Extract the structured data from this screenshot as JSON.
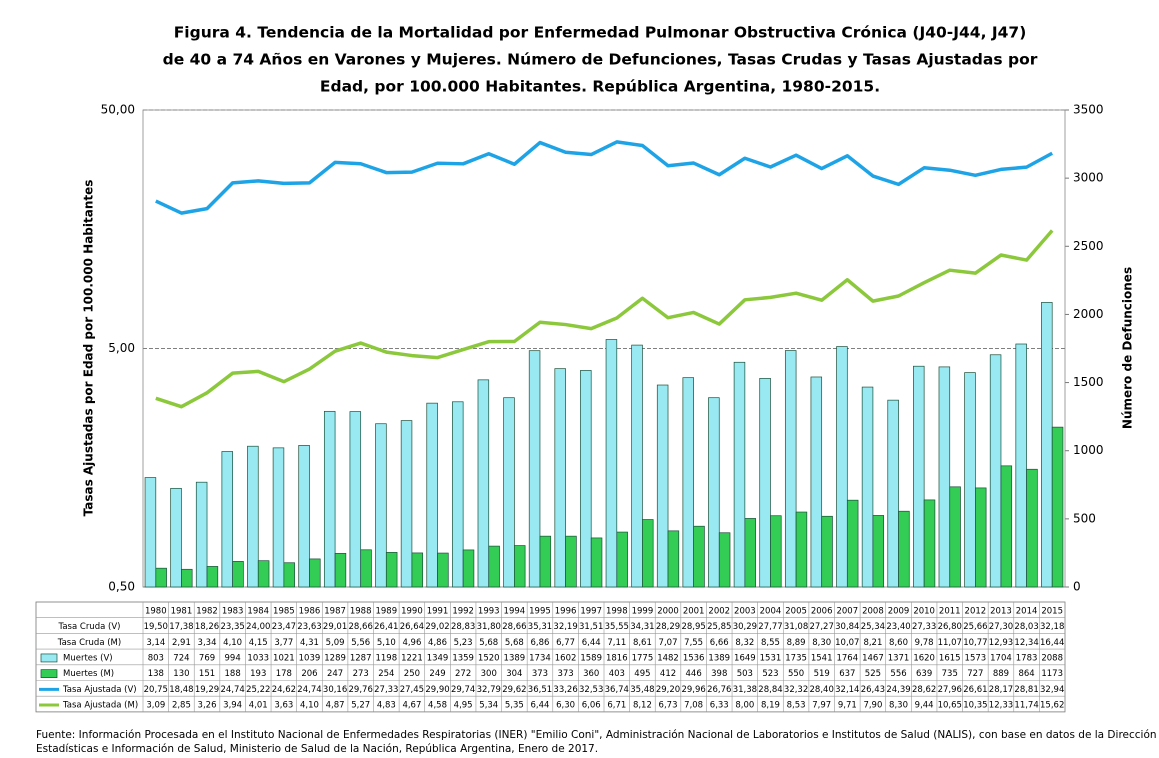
{
  "chart_data": {
    "type": "combo",
    "title": [
      "Figura 4. Tendencia de la Mortalidad por Enfermedad Pulmonar Obstructiva Crónica (J40-J44, J47)",
      "de 40 a 74  Años en Varones y Mujeres. Número de Defunciones, Tasas Crudas y Tasas Ajustadas por",
      "Edad, por 100.000 Habitantes. República Argentina, 1980-2015."
    ],
    "y_label": "Tasas Ajustadas por Edad por 100.000 Habitantes",
    "y2_label": "Número de Defunciones",
    "log_y": true,
    "ylim": [
      0.5,
      50
    ],
    "yticks": [
      {
        "value": 0.5,
        "label": "0,50"
      },
      {
        "value": 5,
        "label": "5,00"
      },
      {
        "value": 50,
        "label": "50,00"
      }
    ],
    "y2lim": [
      0,
      3500
    ],
    "y2ticks": [
      0,
      500,
      1000,
      1500,
      2000,
      2500,
      3000,
      3500
    ],
    "grid": true,
    "categories": [
      "1980",
      "1981",
      "1982",
      "1983",
      "1984",
      "1985",
      "1986",
      "1987",
      "1988",
      "1989",
      "1990",
      "1991",
      "1992",
      "1993",
      "1994",
      "1995",
      "1996",
      "1997",
      "1998",
      "1999",
      "2000",
      "2001",
      "2002",
      "2003",
      "2004",
      "2005",
      "2006",
      "2007",
      "2008",
      "2009",
      "2010",
      "2011",
      "2012",
      "2013",
      "2014",
      "2015"
    ],
    "series": [
      {
        "name": "Tasa Cruda (V)",
        "type": "table",
        "values": [
          19.5,
          17.38,
          18.26,
          23.35,
          24.0,
          23.47,
          23.63,
          29.01,
          28.66,
          26.41,
          26.64,
          29.02,
          28.83,
          31.8,
          28.66,
          35.31,
          32.19,
          31.51,
          35.55,
          34.31,
          28.29,
          28.95,
          25.85,
          30.29,
          27.77,
          31.08,
          27.27,
          30.84,
          25.34,
          23.4,
          27.33,
          26.8,
          25.66,
          27.3,
          28.03,
          32.18
        ],
        "value_labels": [
          "19,50",
          "17,38",
          "18,26",
          "23,35",
          "24,00",
          "23,47",
          "23,63",
          "29,01",
          "28,66",
          "26,41",
          "26,64",
          "29,02",
          "28,83",
          "31,80",
          "28,66",
          "35,31",
          "32,19",
          "31,51",
          "35,55",
          "34,31",
          "28,29",
          "28,95",
          "25,85",
          "30,29",
          "27,77",
          "31,08",
          "27,27",
          "30,84",
          "25,34",
          "23,40",
          "27,33",
          "26,80",
          "25,66",
          "27,30",
          "28,03",
          "32,18"
        ]
      },
      {
        "name": "Tasa Cruda (M)",
        "type": "table",
        "values": [
          3.14,
          2.91,
          3.34,
          4.1,
          4.15,
          3.77,
          4.31,
          5.09,
          5.56,
          5.1,
          4.96,
          4.86,
          5.23,
          5.68,
          5.68,
          6.86,
          6.77,
          6.44,
          7.11,
          8.61,
          7.07,
          7.55,
          6.66,
          8.32,
          8.55,
          8.89,
          8.3,
          10.07,
          8.21,
          8.6,
          9.78,
          11.07,
          10.77,
          12.93,
          12.34,
          16.44
        ],
        "value_labels": [
          "3,14",
          "2,91",
          "3,34",
          "4,10",
          "4,15",
          "3,77",
          "4,31",
          "5,09",
          "5,56",
          "5,10",
          "4,96",
          "4,86",
          "5,23",
          "5,68",
          "5,68",
          "6,86",
          "6,77",
          "6,44",
          "7,11",
          "8,61",
          "7,07",
          "7,55",
          "6,66",
          "8,32",
          "8,55",
          "8,89",
          "8,30",
          "10,07",
          "8,21",
          "8,60",
          "9,78",
          "11,07",
          "10,77",
          "12,93",
          "12,34",
          "16,44"
        ]
      },
      {
        "name": "Muertes (V)",
        "type": "bar",
        "axis": "y2",
        "color": "#99e9f2",
        "values": [
          803,
          724,
          769,
          994,
          1033,
          1021,
          1039,
          1289,
          1287,
          1198,
          1221,
          1349,
          1359,
          1520,
          1389,
          1734,
          1602,
          1589,
          1816,
          1775,
          1482,
          1536,
          1389,
          1649,
          1531,
          1735,
          1541,
          1764,
          1467,
          1371,
          1620,
          1615,
          1573,
          1704,
          1783,
          2088
        ]
      },
      {
        "name": "Muertes (M)",
        "type": "bar",
        "axis": "y2",
        "color": "#33cc55",
        "values": [
          138,
          130,
          151,
          188,
          193,
          178,
          206,
          247,
          273,
          254,
          250,
          249,
          272,
          300,
          304,
          373,
          373,
          360,
          403,
          495,
          412,
          446,
          398,
          503,
          523,
          550,
          519,
          637,
          525,
          556,
          639,
          735,
          727,
          889,
          864,
          1173
        ]
      },
      {
        "name": "Tasa Ajustada (V)",
        "type": "line",
        "color": "#1ea4e6",
        "values": [
          20.75,
          18.48,
          19.29,
          24.74,
          25.22,
          24.62,
          24.74,
          30.16,
          29.76,
          27.33,
          27.45,
          29.9,
          29.74,
          32.79,
          29.62,
          36.51,
          33.26,
          32.53,
          36.74,
          35.48,
          29.2,
          29.96,
          26.76,
          31.38,
          28.84,
          32.32,
          28.4,
          32.14,
          26.43,
          24.39,
          28.62,
          27.96,
          26.61,
          28.17,
          28.81,
          32.94
        ],
        "value_labels": [
          "20,75",
          "18,48",
          "19,29",
          "24,74",
          "25,22",
          "24,62",
          "24,74",
          "30,16",
          "29,76",
          "27,33",
          "27,45",
          "29,90",
          "29,74",
          "32,79",
          "29,62",
          "36,51",
          "33,26",
          "32,53",
          "36,74",
          "35,48",
          "29,20",
          "29,96",
          "26,76",
          "31,38",
          "28,84",
          "32,32",
          "28,40",
          "32,14",
          "26,43",
          "24,39",
          "28,62",
          "27,96",
          "26,61",
          "28,17",
          "28,81",
          "32,94"
        ]
      },
      {
        "name": "Tasa Ajustada (M)",
        "type": "line",
        "color": "#8cc83c",
        "values": [
          3.09,
          2.85,
          3.26,
          3.94,
          4.01,
          3.63,
          4.1,
          4.87,
          5.27,
          4.83,
          4.67,
          4.58,
          4.95,
          5.34,
          5.35,
          6.44,
          6.3,
          6.06,
          6.71,
          8.12,
          6.73,
          7.08,
          6.33,
          8.0,
          8.19,
          8.53,
          7.97,
          9.71,
          7.9,
          8.3,
          9.44,
          10.65,
          10.35,
          12.33,
          11.74,
          15.62
        ],
        "value_labels": [
          "3,09",
          "2,85",
          "3,26",
          "3,94",
          "4,01",
          "3,63",
          "4,10",
          "4,87",
          "5,27",
          "4,83",
          "4,67",
          "4,58",
          "4,95",
          "5,34",
          "5,35",
          "6,44",
          "6,30",
          "6,06",
          "6,71",
          "8,12",
          "6,73",
          "7,08",
          "6,33",
          "8,00",
          "8,19",
          "8,53",
          "7,97",
          "9,71",
          "7,90",
          "8,30",
          "9,44",
          "10,65",
          "10,35",
          "12,33",
          "11,74",
          "15,62"
        ]
      }
    ],
    "source": [
      "Fuente: Información Procesada en el Instituto Nacional de Enfermedades Respiratorias (INER) \"Emilio Coni\", Administración Nacional de Laboratorios e Institutos de Salud (NALIS), con base en datos de la Dirección de",
      "Estadísticas e Información de Salud, Ministerio de Salud de la Nación, República Argentina, Enero  de 2017."
    ]
  }
}
